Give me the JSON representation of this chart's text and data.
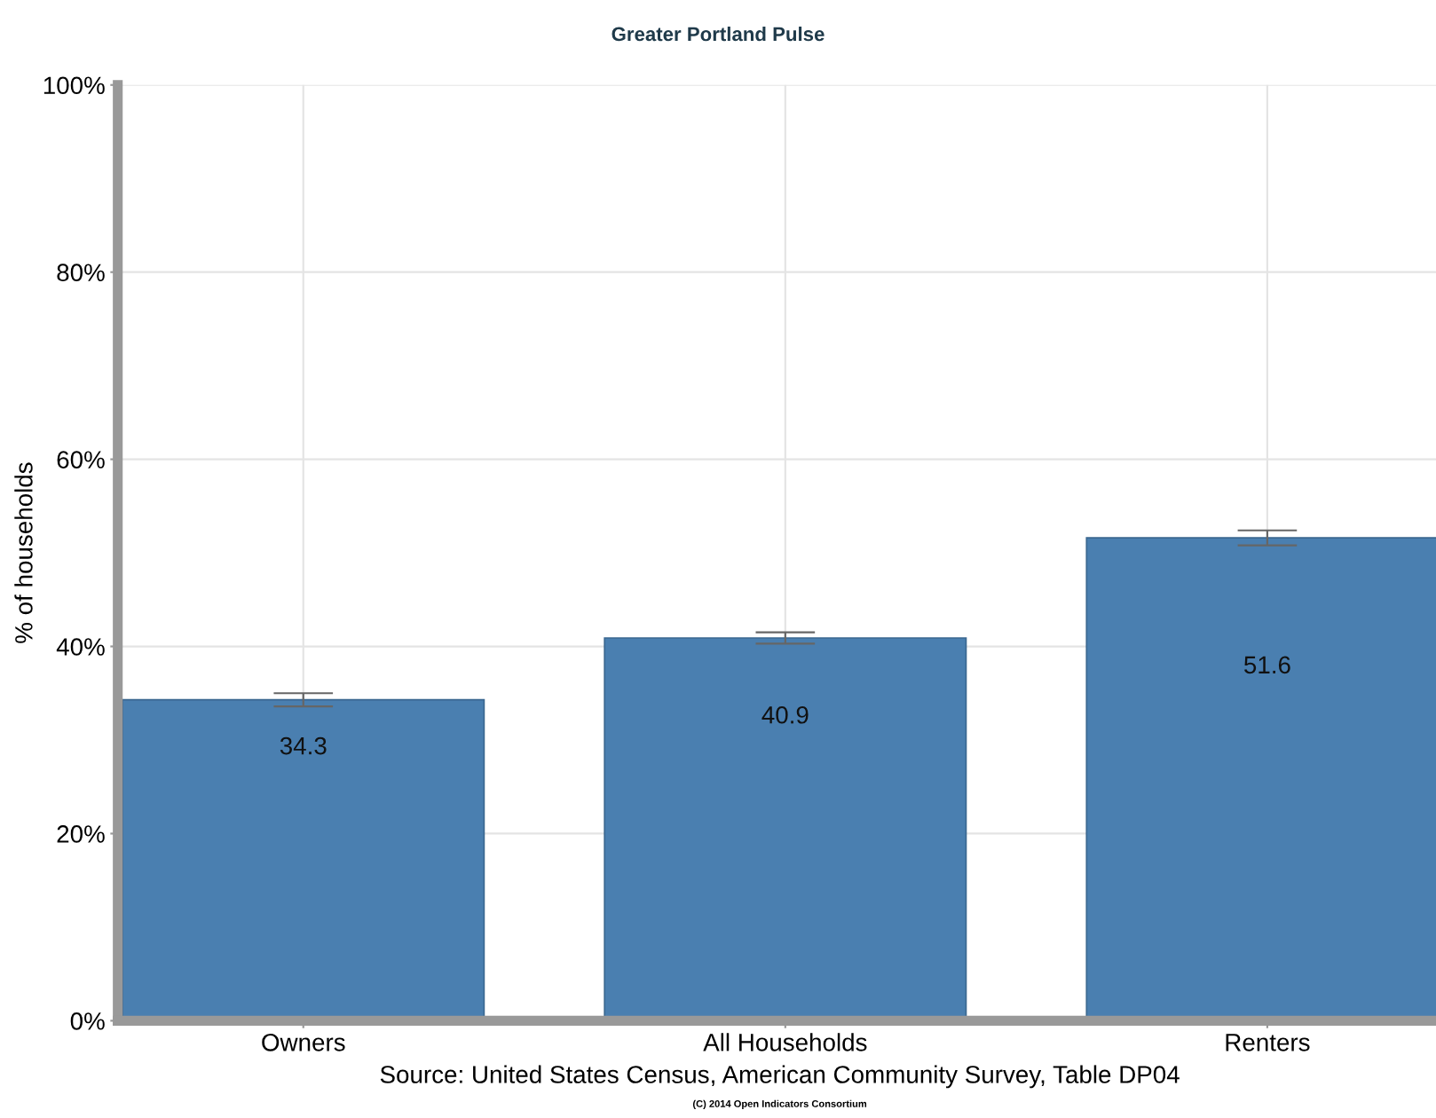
{
  "chart_data": {
    "type": "bar",
    "title": "Greater Portland Pulse",
    "ylabel": "% of households",
    "categories": [
      "Owners",
      "All Households",
      "Renters"
    ],
    "values": [
      34.3,
      40.9,
      51.6
    ],
    "errors": [
      0.7,
      0.6,
      0.8
    ],
    "color": "#4a7fb0",
    "data_labels": true,
    "ylim": [
      0,
      100
    ],
    "yticks": [
      {
        "value": 0,
        "label": "0%"
      },
      {
        "value": 20,
        "label": "20%"
      },
      {
        "value": 40,
        "label": "40%"
      },
      {
        "value": 60,
        "label": "60%"
      },
      {
        "value": 80,
        "label": "80%"
      },
      {
        "value": 100,
        "label": "100%"
      }
    ],
    "grid": true,
    "annotations": [
      "Source: United States Census, American Community Survey, Table DP04",
      "(C) 2014 Open Indicators Consortium"
    ]
  }
}
